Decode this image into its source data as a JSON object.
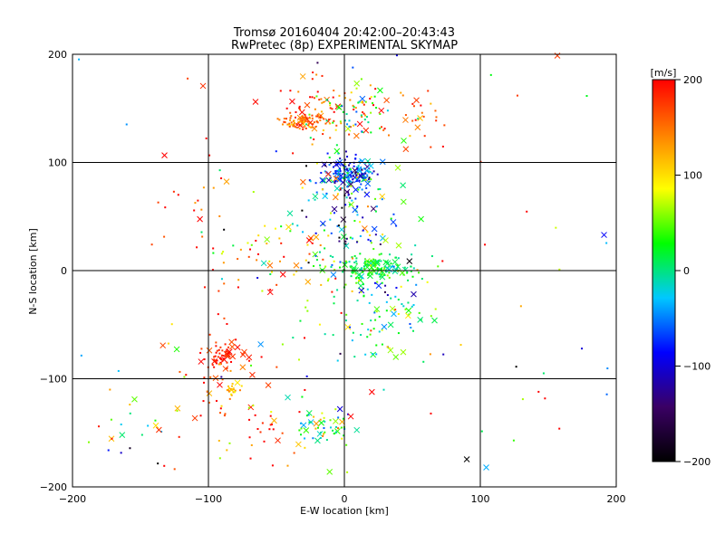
{
  "chart_data": {
    "type": "scatter",
    "title": "Tromsø 20160404 20:42:00–20:43:43",
    "subtitle": "RwPretec (8p) EXPERIMENTAL SKYMAP",
    "xlabel": "E-W location [km]",
    "ylabel": "N-S location [km]",
    "xlim": [
      -200,
      200
    ],
    "ylim": [
      -200,
      200
    ],
    "xticks": [
      -200,
      -100,
      0,
      100,
      200
    ],
    "yticks": [
      -200,
      -100,
      0,
      100,
      200
    ],
    "grid": true,
    "colorbar": {
      "label": "[m/s]",
      "range": [
        -200,
        200
      ],
      "ticks": [
        200,
        100,
        0,
        -100,
        -200
      ],
      "colormap": [
        "#000000",
        "#3a0064",
        "#0000ff",
        "#00c8ff",
        "#00ff00",
        "#ffff00",
        "#ff8000",
        "#ff0000"
      ]
    },
    "clusters": [
      {
        "cx": -30,
        "cy": 138,
        "rx": 14,
        "ry": 6,
        "n": 90,
        "v": 150,
        "vs": 25
      },
      {
        "cx": -10,
        "cy": 150,
        "rx": 45,
        "ry": 30,
        "n": 70,
        "v": 175,
        "vs": 30
      },
      {
        "cx": 5,
        "cy": 145,
        "rx": 25,
        "ry": 20,
        "n": 60,
        "v": 30,
        "vs": 60
      },
      {
        "cx": 2,
        "cy": 90,
        "rx": 18,
        "ry": 12,
        "n": 160,
        "v": -70,
        "vs": 45
      },
      {
        "cx": 0,
        "cy": 75,
        "rx": 35,
        "ry": 25,
        "n": 60,
        "v": 0,
        "vs": 80
      },
      {
        "cx": 20,
        "cy": 2,
        "rx": 30,
        "ry": 10,
        "n": 140,
        "v": 20,
        "vs": 25
      },
      {
        "cx": 25,
        "cy": -40,
        "rx": 40,
        "ry": 45,
        "n": 120,
        "v": 10,
        "vs": 60
      },
      {
        "cx": 10,
        "cy": 40,
        "rx": 30,
        "ry": 40,
        "n": 70,
        "v": -40,
        "vs": 90
      },
      {
        "cx": -90,
        "cy": -78,
        "rx": 8,
        "ry": 8,
        "n": 45,
        "v": 185,
        "vs": 15
      },
      {
        "cx": -95,
        "cy": -90,
        "rx": 30,
        "ry": 45,
        "n": 45,
        "v": 180,
        "vs": 25
      },
      {
        "cx": -85,
        "cy": -110,
        "rx": 8,
        "ry": 5,
        "n": 22,
        "v": 120,
        "vs": 20
      },
      {
        "cx": -15,
        "cy": -145,
        "rx": 20,
        "ry": 15,
        "n": 55,
        "v": 20,
        "vs": 60
      },
      {
        "cx": -60,
        "cy": -140,
        "rx": 40,
        "ry": 40,
        "n": 40,
        "v": 150,
        "vs": 60
      },
      {
        "cx": -50,
        "cy": 20,
        "rx": 60,
        "ry": 35,
        "n": 70,
        "v": 120,
        "vs": 80
      },
      {
        "cx": -150,
        "cy": -140,
        "rx": 40,
        "ry": 40,
        "n": 25,
        "v": 80,
        "vs": 120
      },
      {
        "cx": 50,
        "cy": 140,
        "rx": 25,
        "ry": 30,
        "n": 25,
        "v": 170,
        "vs": 40
      },
      {
        "cx": -110,
        "cy": 70,
        "rx": 30,
        "ry": 40,
        "n": 15,
        "v": 170,
        "vs": 50
      },
      {
        "cx": 0,
        "cy": 0,
        "rx": 180,
        "ry": 180,
        "n": 70,
        "v": 60,
        "vs": 140
      }
    ]
  }
}
